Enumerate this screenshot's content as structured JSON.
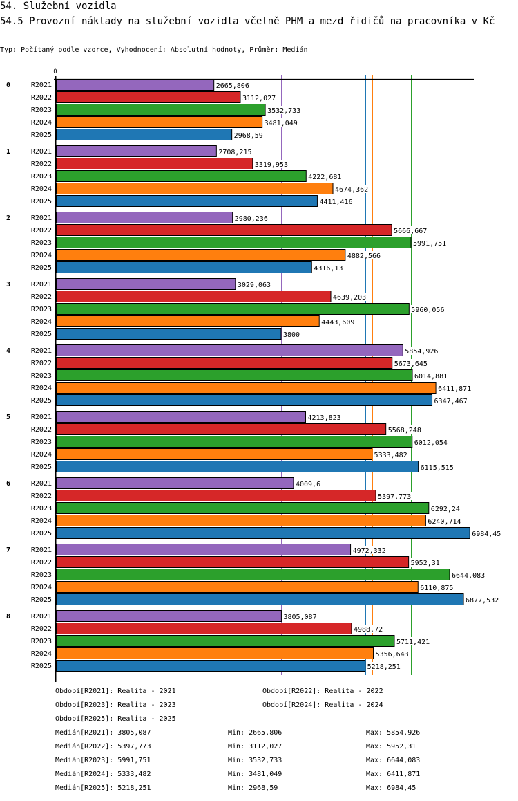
{
  "header": {
    "section_title": "54. Služební vozidla",
    "chart_title": "54.5 Provozní náklady na služební vozidla včetně PHM a mezd řidičů na pracovníka v Kč",
    "subtitle": "Typ: Počítaný podle vzorce, Vyhodnocení: Absolutní hodnoty, Průměr: Medián"
  },
  "chart_data": {
    "type": "bar",
    "orientation": "horizontal",
    "title": "54.5 Provozní náklady na služební vozidla včetně PHM a mezd řidičů na pracovníka v Kč",
    "xlabel": "",
    "ylabel": "",
    "x_tick_labels": [
      "0"
    ],
    "xlim": [
      0,
      7400
    ],
    "grid": false,
    "categories": [
      "0",
      "1",
      "2",
      "3",
      "4",
      "5",
      "6",
      "7",
      "8"
    ],
    "series": [
      {
        "name": "R2021",
        "color": "#9467bd",
        "values": [
          2665.806,
          2708.215,
          2980.236,
          3029.063,
          5854.926,
          4213.823,
          4009.6,
          4972.332,
          3805.087
        ],
        "labels": [
          "2665,806",
          "2708,215",
          "2980,236",
          "3029,063",
          "5854,926",
          "4213,823",
          "4009,6",
          "4972,332",
          "3805,087"
        ]
      },
      {
        "name": "R2022",
        "color": "#d62728",
        "values": [
          3112.027,
          3319.953,
          5666.667,
          4639.203,
          5673.645,
          5568.248,
          5397.773,
          5952.31,
          4988.72
        ],
        "labels": [
          "3112,027",
          "3319,953",
          "5666,667",
          "4639,203",
          "5673,645",
          "5568,248",
          "5397,773",
          "5952,31",
          "4988,72"
        ]
      },
      {
        "name": "R2023",
        "color": "#2ca02c",
        "values": [
          3532.733,
          4222.681,
          5991.751,
          5960.056,
          6014.881,
          6012.054,
          6292.24,
          6644.083,
          5711.421
        ],
        "labels": [
          "3532,733",
          "4222,681",
          "5991,751",
          "5960,056",
          "6014,881",
          "6012,054",
          "6292,24",
          "6644,083",
          "5711,421"
        ]
      },
      {
        "name": "R2024",
        "color": "#ff7f0e",
        "values": [
          3481.049,
          4674.362,
          4882.566,
          4443.609,
          6411.871,
          5333.482,
          6240.714,
          6110.875,
          5356.643
        ],
        "labels": [
          "3481,049",
          "4674,362",
          "4882,566",
          "4443,609",
          "6411,871",
          "5333,482",
          "6240,714",
          "6110,875",
          "5356,643"
        ]
      },
      {
        "name": "R2025",
        "color": "#1f77b4",
        "values": [
          2968.59,
          4411.416,
          4316.13,
          3800,
          6347.467,
          6115.515,
          6984.45,
          6877.532,
          5218.251
        ],
        "labels": [
          "2968,59",
          "4411,416",
          "4316,13",
          "3800",
          "6347,467",
          "6115,515",
          "6984,45",
          "6877,532",
          "5218,251"
        ]
      }
    ],
    "medians": [
      {
        "series": "R2021",
        "value": 3805.087
      },
      {
        "series": "R2022",
        "value": 5397.773
      },
      {
        "series": "R2023",
        "value": 5991.751
      },
      {
        "series": "R2024",
        "value": 5333.482
      },
      {
        "series": "R2025",
        "value": 5218.251
      }
    ],
    "legend_placement": "bottom"
  },
  "legend": {
    "periods": [
      "Období[R2021]: Realita - 2021",
      "Období[R2022]: Realita - 2022",
      "Období[R2023]: Realita - 2023",
      "Období[R2024]: Realita - 2024",
      "Období[R2025]: Realita - 2025"
    ],
    "stats": [
      {
        "median": "Medián[R2021]: 3805,087",
        "min": "Min: 2665,806",
        "max": "Max: 5854,926"
      },
      {
        "median": "Medián[R2022]: 5397,773",
        "min": "Min: 3112,027",
        "max": "Max: 5952,31"
      },
      {
        "median": "Medián[R2023]: 5991,751",
        "min": "Min: 3532,733",
        "max": "Max: 6644,083"
      },
      {
        "median": "Medián[R2024]: 5333,482",
        "min": "Min: 3481,049",
        "max": "Max: 6411,871"
      },
      {
        "median": "Medián[R2025]: 5218,251",
        "min": "Min: 2968,59",
        "max": "Max: 6984,45"
      }
    ]
  }
}
